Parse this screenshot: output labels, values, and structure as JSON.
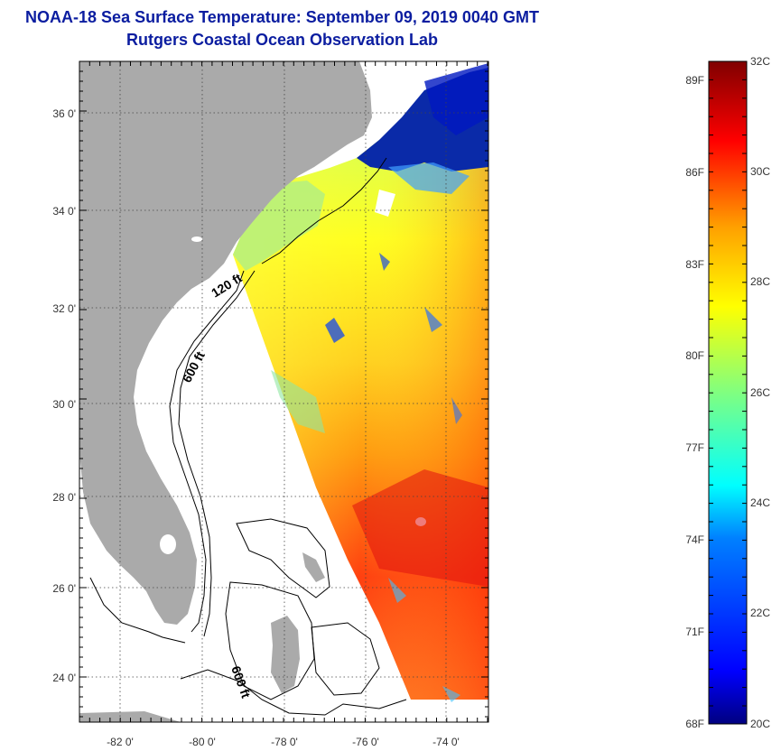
{
  "header": {
    "title": "NOAA-18 Sea Surface Temperature:  September 09, 2019 0040 GMT",
    "subtitle": "Rutgers Coastal Ocean Observation Lab"
  },
  "map": {
    "lat_labels": [
      "36 0'",
      "34 0'",
      "32 0'",
      "30 0'",
      "28 0'",
      "26 0'",
      "24 0'"
    ],
    "lon_labels": [
      "-82 0'",
      "-80 0'",
      "-78 0'",
      "-76 0'",
      "-74 0'"
    ],
    "contours": [
      {
        "label": "120 ft"
      },
      {
        "label": "600 ft"
      },
      {
        "label": "600 ft"
      }
    ],
    "colors": {
      "land": "#aaaaaa",
      "nodata": "#ffffff",
      "grid": "#444444"
    }
  },
  "colorbar": {
    "min_c": 20,
    "max_c": 32,
    "celsius_labels": [
      "32C",
      "30C",
      "28C",
      "26C",
      "24C",
      "22C",
      "20C"
    ],
    "fahrenheit_labels": [
      "89F",
      "86F",
      "83F",
      "80F",
      "77F",
      "74F",
      "71F",
      "68F"
    ],
    "colors": [
      "#000080",
      "#0000ff",
      "#0080ff",
      "#00ffff",
      "#80ff80",
      "#ffff00",
      "#ff8000",
      "#ff0000",
      "#800000"
    ]
  }
}
